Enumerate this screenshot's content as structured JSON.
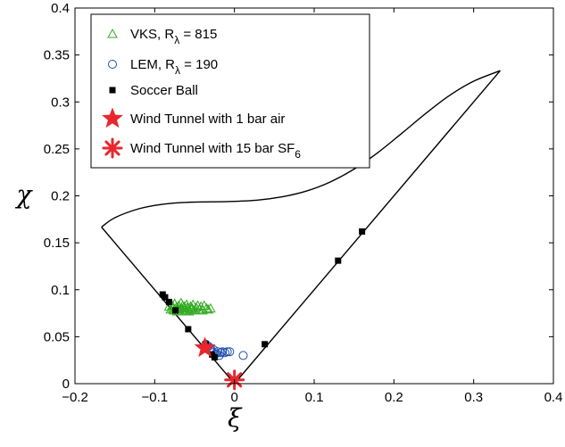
{
  "chart_data": {
    "type": "scatter",
    "xlabel": "ξ",
    "ylabel": "χ",
    "xlim": [
      -0.2,
      0.4
    ],
    "ylim": [
      0,
      0.4
    ],
    "xticks": [
      "−0.2",
      "−0.1",
      "0",
      "0.1",
      "0.2",
      "0.3",
      "0.4"
    ],
    "yticks": [
      "0",
      "0.05",
      "0.1",
      "0.15",
      "0.2",
      "0.25",
      "0.3",
      "0.35",
      "0.4"
    ],
    "grid": false,
    "legend_position": "top-left",
    "boundary": [
      [
        -0.1667,
        0.1667
      ],
      [
        -0.15,
        0.1767
      ],
      [
        -0.12,
        0.1862
      ],
      [
        -0.09,
        0.1911
      ],
      [
        -0.06,
        0.1931
      ],
      [
        -0.03,
        0.1936
      ],
      [
        0.0,
        0.1941
      ],
      [
        0.03,
        0.1955
      ],
      [
        0.06,
        0.199
      ],
      [
        0.09,
        0.205
      ],
      [
        0.12,
        0.2147
      ],
      [
        0.15,
        0.2285
      ],
      [
        0.18,
        0.2462
      ],
      [
        0.21,
        0.2667
      ],
      [
        0.24,
        0.2878
      ],
      [
        0.27,
        0.3071
      ],
      [
        0.3,
        0.3221
      ],
      [
        0.3333,
        0.3333
      ]
    ],
    "boundary_left": [
      [
        -0.1667,
        0.1667
      ],
      [
        0,
        0
      ]
    ],
    "boundary_right": [
      [
        0,
        0
      ],
      [
        0.3333,
        0.3333
      ]
    ],
    "series": [
      {
        "name": "VKS, R",
        "subscript": "λ",
        "suffix": " = 815",
        "marker": "triangle-open",
        "color": "#33aa22",
        "points": [
          [
            -0.082,
            0.082
          ],
          [
            -0.08,
            0.079
          ],
          [
            -0.078,
            0.083
          ],
          [
            -0.076,
            0.078
          ],
          [
            -0.075,
            0.085
          ],
          [
            -0.073,
            0.081
          ],
          [
            -0.072,
            0.077
          ],
          [
            -0.07,
            0.083
          ],
          [
            -0.069,
            0.079
          ],
          [
            -0.067,
            0.086
          ],
          [
            -0.066,
            0.08
          ],
          [
            -0.064,
            0.077
          ],
          [
            -0.063,
            0.082
          ],
          [
            -0.061,
            0.078
          ],
          [
            -0.06,
            0.084
          ],
          [
            -0.058,
            0.08
          ],
          [
            -0.057,
            0.077
          ],
          [
            -0.055,
            0.082
          ],
          [
            -0.054,
            0.079
          ],
          [
            -0.052,
            0.084
          ],
          [
            -0.05,
            0.078
          ],
          [
            -0.048,
            0.081
          ],
          [
            -0.046,
            0.083
          ],
          [
            -0.044,
            0.079
          ],
          [
            -0.042,
            0.082
          ],
          [
            -0.04,
            0.078
          ],
          [
            -0.038,
            0.083
          ],
          [
            -0.035,
            0.08
          ],
          [
            -0.033,
            0.079
          ],
          [
            -0.03,
            0.08
          ],
          [
            -0.077,
            0.08
          ],
          [
            -0.071,
            0.08
          ],
          [
            -0.065,
            0.083
          ],
          [
            -0.059,
            0.081
          ],
          [
            -0.053,
            0.08
          ]
        ]
      },
      {
        "name": "LEM, R",
        "subscript": "λ",
        "suffix": " = 190",
        "marker": "circle-open",
        "color": "#1f4fae",
        "points": [
          [
            -0.036,
            0.042
          ],
          [
            -0.033,
            0.04
          ],
          [
            -0.031,
            0.037
          ],
          [
            -0.029,
            0.035
          ],
          [
            -0.027,
            0.033
          ],
          [
            -0.025,
            0.031
          ],
          [
            -0.023,
            0.032
          ],
          [
            -0.021,
            0.034
          ],
          [
            -0.019,
            0.03
          ],
          [
            -0.017,
            0.033
          ],
          [
            -0.015,
            0.034
          ],
          [
            -0.012,
            0.033
          ],
          [
            -0.009,
            0.034
          ],
          [
            -0.006,
            0.034
          ],
          [
            0.011,
            0.03
          ],
          [
            -0.03,
            0.038
          ],
          [
            -0.026,
            0.036
          ]
        ]
      },
      {
        "name": "Soccer Ball",
        "marker": "square-filled",
        "color": "#000000",
        "points": [
          [
            -0.09,
            0.095
          ],
          [
            -0.087,
            0.092
          ],
          [
            -0.082,
            0.087
          ],
          [
            -0.074,
            0.078
          ],
          [
            -0.058,
            0.058
          ],
          [
            -0.036,
            0.042
          ],
          [
            -0.028,
            0.031
          ],
          [
            -0.025,
            0.028
          ],
          [
            0.038,
            0.042
          ],
          [
            0.13,
            0.131
          ],
          [
            0.16,
            0.162
          ]
        ]
      },
      {
        "name": "Wind Tunnel with 1 bar air",
        "marker": "star-filled",
        "color": "#e8262c",
        "points": [
          [
            -0.037,
            0.038
          ]
        ]
      },
      {
        "name": "Wind Tunnel with 15 bar SF",
        "subscript": "6",
        "marker": "asterisk",
        "color": "#e8262c",
        "points": [
          [
            0.0,
            0.004
          ]
        ]
      }
    ]
  }
}
